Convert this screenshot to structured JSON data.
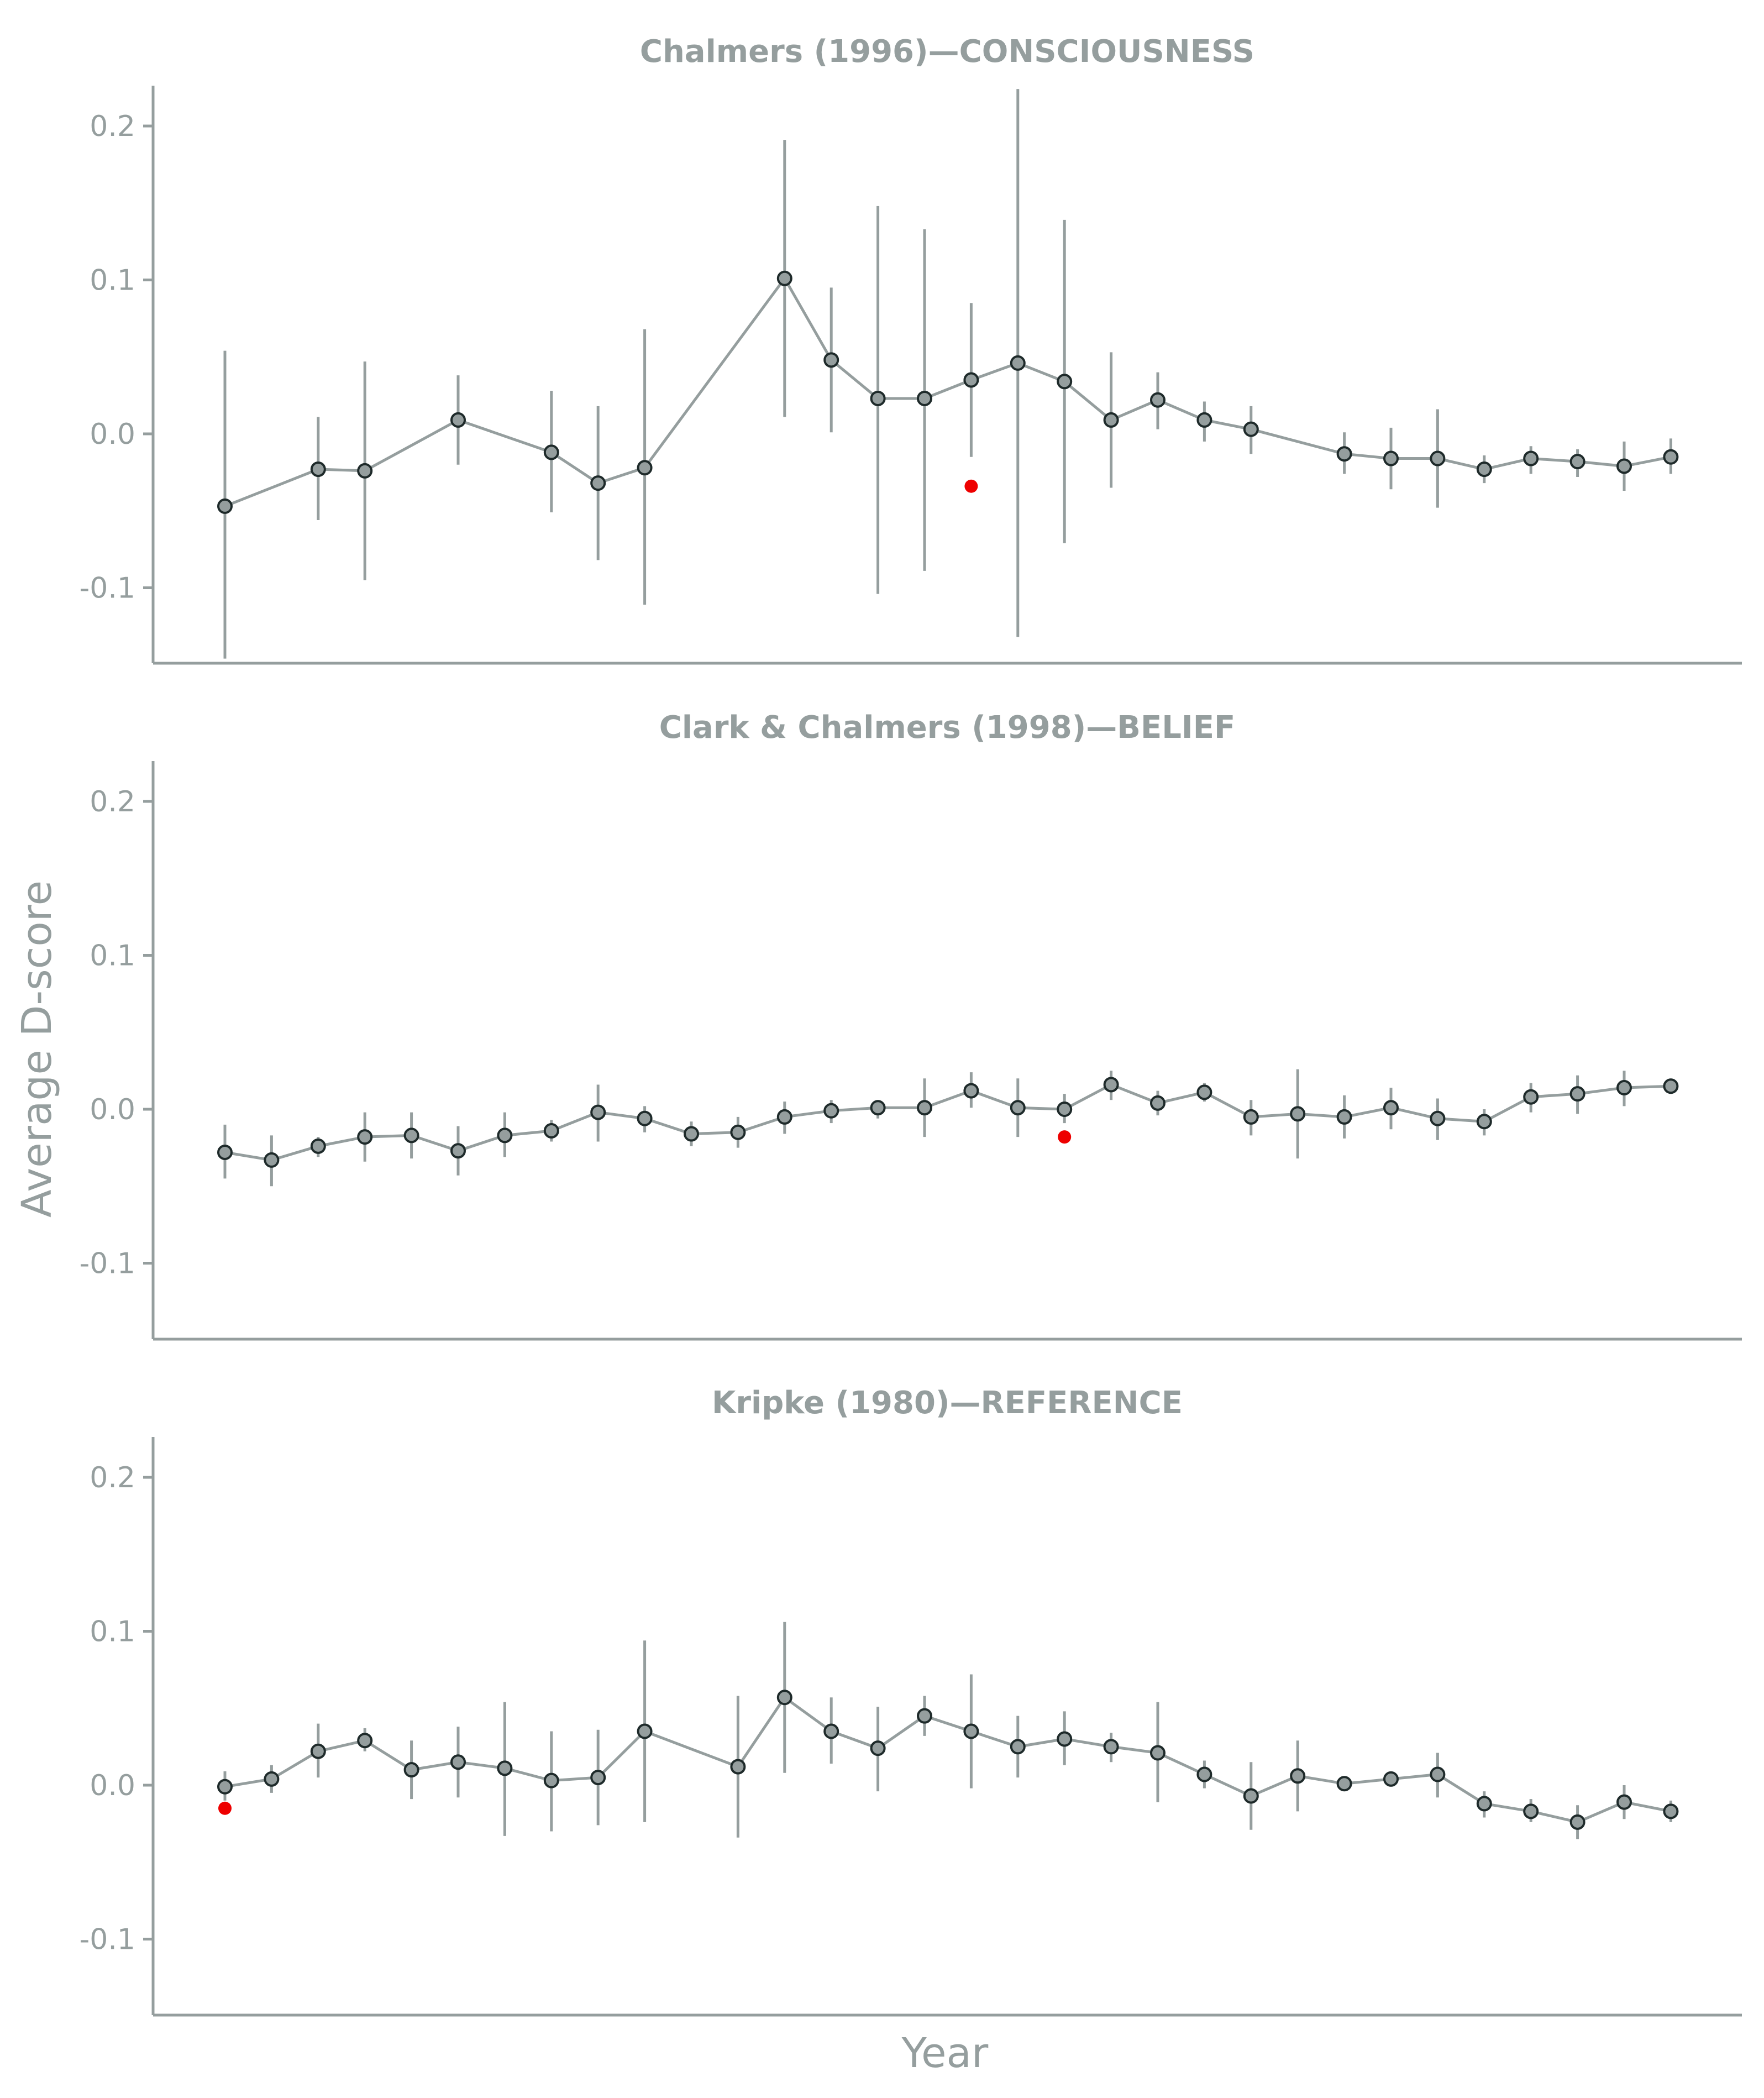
{
  "colors": {
    "text": "#959e9e",
    "axis": "#959e9e",
    "line": "#959e9e",
    "point_fill": "#959e9e",
    "point_edge": "#1e2a2a",
    "highlight": "#ee0000",
    "background": "#ffffff"
  },
  "xlabel": "Year",
  "ylabel": "Average D-score",
  "chart_data": [
    {
      "type": "line",
      "title": "Chalmers (1996)—CONSCIOUSNESS",
      "xlabel": "Year",
      "ylabel": "Average D-score",
      "ylim": [
        -0.15,
        0.225
      ],
      "yticks": [
        0.2,
        0.1,
        0.0,
        -0.1
      ],
      "ytick_labels": [
        "0.2",
        "0.1",
        "0.0",
        "-0.1"
      ],
      "x_ticks_labeled": false,
      "grid": false,
      "legend": "none",
      "series": [
        {
          "x": [
            1,
            3,
            4,
            6,
            8,
            9,
            10,
            13,
            14,
            15,
            16,
            17,
            18,
            19,
            20,
            21,
            22,
            23,
            25,
            26,
            27,
            28,
            29,
            30,
            31,
            32
          ],
          "values": [
            -0.047,
            -0.023,
            -0.024,
            0.009,
            -0.012,
            -0.032,
            -0.022,
            0.101,
            0.048,
            0.023,
            0.023,
            0.035,
            0.046,
            0.034,
            0.009,
            0.022,
            0.009,
            0.003,
            -0.013,
            -0.016,
            -0.016,
            -0.023,
            -0.016,
            -0.018,
            -0.021,
            -0.015
          ],
          "lower": [
            -0.146,
            -0.056,
            -0.095,
            -0.02,
            -0.051,
            -0.082,
            -0.111,
            0.011,
            0.001,
            -0.104,
            -0.089,
            -0.015,
            -0.132,
            -0.071,
            -0.035,
            0.003,
            -0.005,
            -0.013,
            -0.026,
            -0.036,
            -0.048,
            -0.032,
            -0.026,
            -0.028,
            -0.037,
            -0.026
          ],
          "upper": [
            0.054,
            0.011,
            0.047,
            0.038,
            0.028,
            0.018,
            0.068,
            0.191,
            0.095,
            0.148,
            0.133,
            0.085,
            0.224,
            0.139,
            0.053,
            0.04,
            0.021,
            0.018,
            0.001,
            0.004,
            0.016,
            -0.014,
            -0.008,
            -0.01,
            -0.005,
            -0.003
          ]
        }
      ],
      "highlight": {
        "x": 17,
        "y": -0.034
      }
    },
    {
      "type": "line",
      "title": "Clark & Chalmers (1998)—BELIEF",
      "xlabel": "Year",
      "ylabel": "Average D-score",
      "ylim": [
        -0.15,
        0.225
      ],
      "yticks": [
        0.2,
        0.1,
        0.0,
        -0.1
      ],
      "ytick_labels": [
        "0.2",
        "0.1",
        "0.0",
        "-0.1"
      ],
      "x_ticks_labeled": false,
      "grid": false,
      "legend": "none",
      "series": [
        {
          "x": [
            1,
            2,
            3,
            4,
            5,
            6,
            7,
            8,
            9,
            10,
            11,
            12,
            13,
            14,
            15,
            16,
            17,
            18,
            19,
            20,
            21,
            22,
            23,
            24,
            25,
            26,
            27,
            28,
            29,
            30,
            31,
            32
          ],
          "values": [
            -0.028,
            -0.033,
            -0.024,
            -0.018,
            -0.017,
            -0.027,
            -0.017,
            -0.014,
            -0.002,
            -0.006,
            -0.016,
            -0.015,
            -0.005,
            -0.001,
            0.001,
            0.001,
            0.012,
            0.001,
            0.0,
            0.016,
            0.004,
            0.011,
            -0.005,
            -0.003,
            -0.005,
            0.001,
            -0.006,
            -0.008,
            0.008,
            0.01,
            0.014,
            0.015
          ],
          "lower": [
            -0.045,
            -0.05,
            -0.031,
            -0.034,
            -0.032,
            -0.043,
            -0.031,
            -0.021,
            -0.021,
            -0.015,
            -0.024,
            -0.025,
            -0.016,
            -0.009,
            -0.006,
            -0.018,
            0.001,
            -0.018,
            -0.009,
            0.006,
            -0.004,
            0.005,
            -0.017,
            -0.032,
            -0.019,
            -0.013,
            -0.02,
            -0.017,
            -0.002,
            -0.003,
            0.002,
            0.01
          ],
          "upper": [
            -0.01,
            -0.017,
            -0.018,
            -0.002,
            -0.002,
            -0.011,
            -0.002,
            -0.007,
            0.016,
            0.002,
            -0.008,
            -0.005,
            0.005,
            0.006,
            0.006,
            0.02,
            0.024,
            0.02,
            0.01,
            0.025,
            0.012,
            0.017,
            0.006,
            0.026,
            0.009,
            0.014,
            0.007,
            0.0,
            0.017,
            0.022,
            0.025,
            0.02
          ]
        }
      ],
      "highlight": {
        "x": 19,
        "y": -0.018
      }
    },
    {
      "type": "line",
      "title": "Kripke (1980)—REFERENCE",
      "xlabel": "Year",
      "ylabel": "Average D-score",
      "ylim": [
        -0.15,
        0.225
      ],
      "yticks": [
        0.2,
        0.1,
        0.0,
        -0.1
      ],
      "ytick_labels": [
        "0.2",
        "0.1",
        "0.0",
        "-0.1"
      ],
      "x_ticks_labeled": false,
      "grid": false,
      "legend": "none",
      "series": [
        {
          "x": [
            1,
            2,
            3,
            4,
            5,
            6,
            7,
            8,
            9,
            10,
            12,
            13,
            14,
            15,
            16,
            17,
            18,
            19,
            20,
            21,
            22,
            23,
            24,
            25,
            26,
            27,
            28,
            29,
            30,
            31,
            32
          ],
          "values": [
            -0.001,
            0.004,
            0.022,
            0.029,
            0.01,
            0.015,
            0.011,
            0.003,
            0.005,
            0.035,
            0.012,
            0.057,
            0.035,
            0.024,
            0.045,
            0.035,
            0.025,
            0.03,
            0.025,
            0.021,
            0.007,
            -0.007,
            0.006,
            0.001,
            0.004,
            0.007,
            -0.012,
            -0.017,
            -0.024,
            -0.011,
            -0.017
          ],
          "lower": [
            -0.01,
            -0.005,
            0.005,
            0.022,
            -0.009,
            -0.008,
            -0.033,
            -0.03,
            -0.026,
            -0.024,
            -0.034,
            0.008,
            0.014,
            -0.004,
            0.032,
            -0.002,
            0.005,
            0.013,
            0.015,
            -0.011,
            -0.002,
            -0.029,
            -0.017,
            -0.003,
            0.0,
            -0.008,
            -0.021,
            -0.024,
            -0.035,
            -0.022,
            -0.024
          ],
          "upper": [
            0.009,
            0.013,
            0.04,
            0.037,
            0.029,
            0.038,
            0.054,
            0.035,
            0.036,
            0.094,
            0.058,
            0.106,
            0.057,
            0.051,
            0.058,
            0.072,
            0.045,
            0.048,
            0.034,
            0.054,
            0.016,
            0.015,
            0.029,
            0.005,
            0.008,
            0.021,
            -0.004,
            -0.009,
            -0.013,
            0.0,
            -0.01
          ]
        }
      ],
      "highlight": {
        "x": 1,
        "y": -0.015
      }
    }
  ]
}
